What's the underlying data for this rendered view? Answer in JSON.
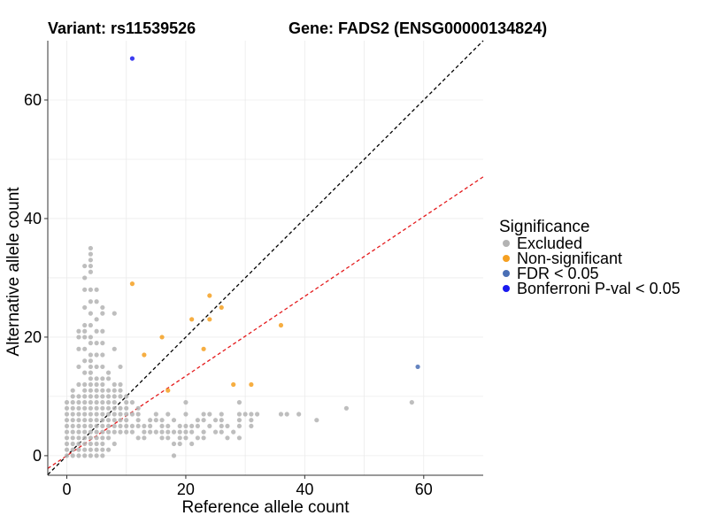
{
  "header": {
    "variant_label": "Variant: rs11539526",
    "gene_label": "Gene: FADS2 (ENSG00000134824)"
  },
  "legend": {
    "title": "Significance",
    "items": [
      {
        "label": "Excluded",
        "color": "#b3b3b3"
      },
      {
        "label": "Non-significant",
        "color": "#f5a021"
      },
      {
        "label": "FDR < 0.05",
        "color": "#4a6fb5"
      },
      {
        "label": "Bonferroni P-val < 0.05",
        "color": "#1a1aef"
      }
    ]
  },
  "chart_data": {
    "type": "scatter",
    "xlabel": "Reference allele count",
    "ylabel": "Alternative allele count",
    "xlim": [
      -3.2,
      70
    ],
    "ylim": [
      -3.3,
      70
    ],
    "xticks": [
      0,
      20,
      40,
      60
    ],
    "yticks": [
      0,
      20,
      40,
      60
    ],
    "grid": true,
    "legend_position": "right",
    "reference_lines": [
      {
        "name": "y = x",
        "slope": 1,
        "intercept": 0,
        "color": "#000000",
        "style": "dashed"
      },
      {
        "name": "ratio line",
        "slope": 0.672,
        "intercept": 0,
        "color": "#e41a1c",
        "style": "dashed"
      }
    ],
    "series": [
      {
        "name": "Excluded",
        "color": "#b3b3b3",
        "points": [
          [
            0,
            0
          ],
          [
            0,
            1
          ],
          [
            0,
            2
          ],
          [
            0,
            3
          ],
          [
            0,
            4
          ],
          [
            0,
            5
          ],
          [
            0,
            6
          ],
          [
            0,
            7
          ],
          [
            0,
            8
          ],
          [
            0,
            9
          ],
          [
            1,
            0
          ],
          [
            1,
            1
          ],
          [
            1,
            2
          ],
          [
            1,
            3
          ],
          [
            1,
            4
          ],
          [
            1,
            5
          ],
          [
            1,
            6
          ],
          [
            1,
            7
          ],
          [
            1,
            8
          ],
          [
            1,
            9
          ],
          [
            1,
            10
          ],
          [
            1,
            11
          ],
          [
            2,
            0
          ],
          [
            2,
            1
          ],
          [
            2,
            2
          ],
          [
            2,
            3
          ],
          [
            2,
            4
          ],
          [
            2,
            5
          ],
          [
            2,
            6
          ],
          [
            2,
            7
          ],
          [
            2,
            8
          ],
          [
            2,
            9
          ],
          [
            2,
            10
          ],
          [
            2,
            12
          ],
          [
            2,
            15
          ],
          [
            2,
            18
          ],
          [
            2,
            20
          ],
          [
            2,
            21
          ],
          [
            3,
            0
          ],
          [
            3,
            1
          ],
          [
            3,
            2
          ],
          [
            3,
            3
          ],
          [
            3,
            4
          ],
          [
            3,
            5
          ],
          [
            3,
            6
          ],
          [
            3,
            7
          ],
          [
            3,
            8
          ],
          [
            3,
            9
          ],
          [
            3,
            10
          ],
          [
            3,
            11
          ],
          [
            3,
            12
          ],
          [
            3,
            14
          ],
          [
            3,
            16
          ],
          [
            3,
            18
          ],
          [
            3,
            20
          ],
          [
            3,
            21
          ],
          [
            3,
            22
          ],
          [
            3,
            25
          ],
          [
            3,
            28
          ],
          [
            3,
            30
          ],
          [
            3,
            32
          ],
          [
            4,
            0
          ],
          [
            4,
            1
          ],
          [
            4,
            2
          ],
          [
            4,
            3
          ],
          [
            4,
            4
          ],
          [
            4,
            5
          ],
          [
            4,
            6
          ],
          [
            4,
            7
          ],
          [
            4,
            8
          ],
          [
            4,
            9
          ],
          [
            4,
            10
          ],
          [
            4,
            11
          ],
          [
            4,
            12
          ],
          [
            4,
            13
          ],
          [
            4,
            14
          ],
          [
            4,
            15
          ],
          [
            4,
            16
          ],
          [
            4,
            17
          ],
          [
            4,
            19
          ],
          [
            4,
            20
          ],
          [
            4,
            22
          ],
          [
            4,
            24
          ],
          [
            4,
            26
          ],
          [
            4,
            28
          ],
          [
            4,
            31
          ],
          [
            4,
            32
          ],
          [
            4,
            33
          ],
          [
            4,
            34
          ],
          [
            4,
            35
          ],
          [
            5,
            0
          ],
          [
            5,
            1
          ],
          [
            5,
            2
          ],
          [
            5,
            3
          ],
          [
            5,
            4
          ],
          [
            5,
            5
          ],
          [
            5,
            6
          ],
          [
            5,
            7
          ],
          [
            5,
            8
          ],
          [
            5,
            9
          ],
          [
            5,
            10
          ],
          [
            5,
            11
          ],
          [
            5,
            12
          ],
          [
            5,
            13
          ],
          [
            5,
            15
          ],
          [
            5,
            17
          ],
          [
            5,
            19
          ],
          [
            5,
            21
          ],
          [
            5,
            23
          ],
          [
            5,
            26
          ],
          [
            5,
            28
          ],
          [
            6,
            0
          ],
          [
            6,
            1
          ],
          [
            6,
            2
          ],
          [
            6,
            3
          ],
          [
            6,
            4
          ],
          [
            6,
            5
          ],
          [
            6,
            6
          ],
          [
            6,
            7
          ],
          [
            6,
            8
          ],
          [
            6,
            9
          ],
          [
            6,
            10
          ],
          [
            6,
            11
          ],
          [
            6,
            12
          ],
          [
            6,
            13
          ],
          [
            6,
            15
          ],
          [
            6,
            17
          ],
          [
            6,
            19
          ],
          [
            6,
            21
          ],
          [
            6,
            24
          ],
          [
            6,
            25
          ],
          [
            7,
            1
          ],
          [
            7,
            3
          ],
          [
            7,
            4
          ],
          [
            7,
            5
          ],
          [
            7,
            6
          ],
          [
            7,
            7
          ],
          [
            7,
            8
          ],
          [
            7,
            9
          ],
          [
            7,
            10
          ],
          [
            7,
            11
          ],
          [
            7,
            13
          ],
          [
            7,
            14
          ],
          [
            8,
            2
          ],
          [
            8,
            4
          ],
          [
            8,
            5
          ],
          [
            8,
            6
          ],
          [
            8,
            7
          ],
          [
            8,
            8
          ],
          [
            8,
            9
          ],
          [
            8,
            10
          ],
          [
            8,
            11
          ],
          [
            8,
            12
          ],
          [
            8,
            18
          ],
          [
            8,
            24
          ],
          [
            9,
            4
          ],
          [
            9,
            5
          ],
          [
            9,
            6
          ],
          [
            9,
            7
          ],
          [
            9,
            8
          ],
          [
            9,
            10
          ],
          [
            9,
            11
          ],
          [
            9,
            12
          ],
          [
            9,
            15
          ],
          [
            10,
            4
          ],
          [
            10,
            5
          ],
          [
            10,
            6
          ],
          [
            10,
            7
          ],
          [
            10,
            8
          ],
          [
            10,
            9
          ],
          [
            10,
            10
          ],
          [
            11,
            4
          ],
          [
            11,
            5
          ],
          [
            11,
            7
          ],
          [
            11,
            9
          ],
          [
            12,
            3
          ],
          [
            12,
            5
          ],
          [
            12,
            6
          ],
          [
            12,
            7
          ],
          [
            12,
            8
          ],
          [
            13,
            3
          ],
          [
            13,
            4
          ],
          [
            13,
            5
          ],
          [
            14,
            4
          ],
          [
            14,
            5
          ],
          [
            14,
            6
          ],
          [
            15,
            4
          ],
          [
            15,
            6
          ],
          [
            15,
            7
          ],
          [
            16,
            3
          ],
          [
            16,
            4
          ],
          [
            16,
            5
          ],
          [
            16,
            6
          ],
          [
            17,
            3
          ],
          [
            17,
            4
          ],
          [
            17,
            5
          ],
          [
            17,
            7
          ],
          [
            18,
            0
          ],
          [
            18,
            2
          ],
          [
            18,
            4
          ],
          [
            18,
            6
          ],
          [
            19,
            2
          ],
          [
            19,
            3
          ],
          [
            19,
            4
          ],
          [
            19,
            5
          ],
          [
            20,
            3
          ],
          [
            20,
            4
          ],
          [
            20,
            5
          ],
          [
            20,
            7
          ],
          [
            20,
            9
          ],
          [
            21,
            2
          ],
          [
            21,
            4
          ],
          [
            21,
            5
          ],
          [
            22,
            3
          ],
          [
            22,
            5
          ],
          [
            22,
            6
          ],
          [
            23,
            3
          ],
          [
            23,
            4
          ],
          [
            23,
            6
          ],
          [
            23,
            7
          ],
          [
            24,
            5
          ],
          [
            24,
            7
          ],
          [
            25,
            4
          ],
          [
            25,
            6
          ],
          [
            26,
            4
          ],
          [
            26,
            5
          ],
          [
            26,
            6
          ],
          [
            26,
            7
          ],
          [
            27,
            3
          ],
          [
            27,
            5
          ],
          [
            28,
            4
          ],
          [
            29,
            3
          ],
          [
            29,
            5
          ],
          [
            29,
            6
          ],
          [
            29,
            7
          ],
          [
            29,
            9
          ],
          [
            30,
            7
          ],
          [
            31,
            5
          ],
          [
            31,
            6
          ],
          [
            31,
            7
          ],
          [
            32,
            7
          ],
          [
            36,
            7
          ],
          [
            37,
            7
          ],
          [
            39,
            7
          ],
          [
            42,
            6
          ],
          [
            47,
            8
          ],
          [
            58,
            9
          ]
        ]
      },
      {
        "name": "Non-significant",
        "color": "#f5a021",
        "points": [
          [
            11,
            29
          ],
          [
            13,
            17
          ],
          [
            16,
            20
          ],
          [
            17,
            11
          ],
          [
            21,
            23
          ],
          [
            23,
            18
          ],
          [
            24,
            23
          ],
          [
            24,
            27
          ],
          [
            26,
            25
          ],
          [
            28,
            12
          ],
          [
            31,
            12
          ],
          [
            36,
            22
          ]
        ]
      },
      {
        "name": "FDR < 0.05",
        "color": "#4a6fb5",
        "points": [
          [
            59,
            15
          ]
        ]
      },
      {
        "name": "Bonferroni P-val < 0.05",
        "color": "#1a1aef",
        "points": [
          [
            11,
            67
          ]
        ]
      }
    ]
  }
}
